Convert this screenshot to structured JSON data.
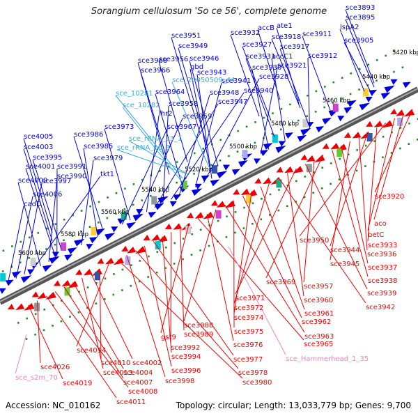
{
  "title": "Sorangium cellulosum 'So ce 56', complete genome",
  "footer": {
    "accession": "Accession: NC_010162",
    "summary": "Topology: circular; Length: 13,033,779 bp; Genes: 9,700"
  },
  "colors": {
    "forward_gene": "#0000dd",
    "reverse_gene": "#ee0000",
    "rna_label": "#33aadd",
    "misc_label": "#ee88bb",
    "backbone": "#7a7a7a",
    "tick": "#228822"
  },
  "kbp_ticks": [
    "5420 kbp",
    "5440 kbp",
    "5460 kbp",
    "5480 kbp",
    "5500 kbp",
    "5520 kbp",
    "5540 kbp",
    "5560 kbp",
    "5580 kbp",
    "5600 kbp"
  ],
  "forward_labels": [
    "sce3893",
    "sce3895",
    "lspA2",
    "sce3905",
    "accB",
    "ate1",
    "sce3918",
    "sce3911",
    "sce3932",
    "sce3927",
    "sce3917",
    "sce3912",
    "sce3951",
    "sce3931",
    "accC1",
    "sce3949",
    "sce3930",
    "sce3921",
    "sce3968",
    "sce3956",
    "sce3946",
    "gbd",
    "sce3966",
    "sce3943",
    "sce3928",
    "sce3941",
    "sce3964",
    "sce3948",
    "sce3940",
    "sce3958",
    "sce3947",
    "lhr2",
    "sce3959",
    "sce3973",
    "sce3967",
    "sce3986",
    "sce4005",
    "sce3985",
    "sce4003",
    "sce3979",
    "sce3995",
    "sce4001",
    "sce3991",
    "sce3990",
    "sce4009",
    "tkt1",
    "sce3997",
    "sce4006",
    "cadD"
  ],
  "rna_labels": [
    "sce_20050509_44",
    "sce_10281",
    "sce_10282",
    "sce_rRNA_23_1",
    "sce_rRNA_16_3"
  ],
  "reverse_labels": [
    "sce3920",
    "aco",
    "betC",
    "sce3950",
    "sce3933",
    "sce3944",
    "sce3936",
    "sce3945",
    "sce3937",
    "sce3938",
    "sce3969",
    "sce3957",
    "sce3939",
    "sce3971",
    "sce3960",
    "sce3942",
    "sce3972",
    "sce3961",
    "sce3974",
    "sce3962",
    "sce3975",
    "sce3963",
    "sce3988",
    "sce3976",
    "sce3965",
    "gst9",
    "sce3989",
    "sce3992",
    "sce3994",
    "sce3977",
    "sce3996",
    "sce3978",
    "sce3998",
    "sce3980",
    "sce4014",
    "sce4010",
    "sce4002",
    "sce4013",
    "sce4004",
    "sce4007",
    "sce4008",
    "sce4011",
    "sce4026",
    "sce4019"
  ],
  "misc_labels": [
    "sce_Hammerhead_1_35",
    "sce_s2m_70"
  ]
}
